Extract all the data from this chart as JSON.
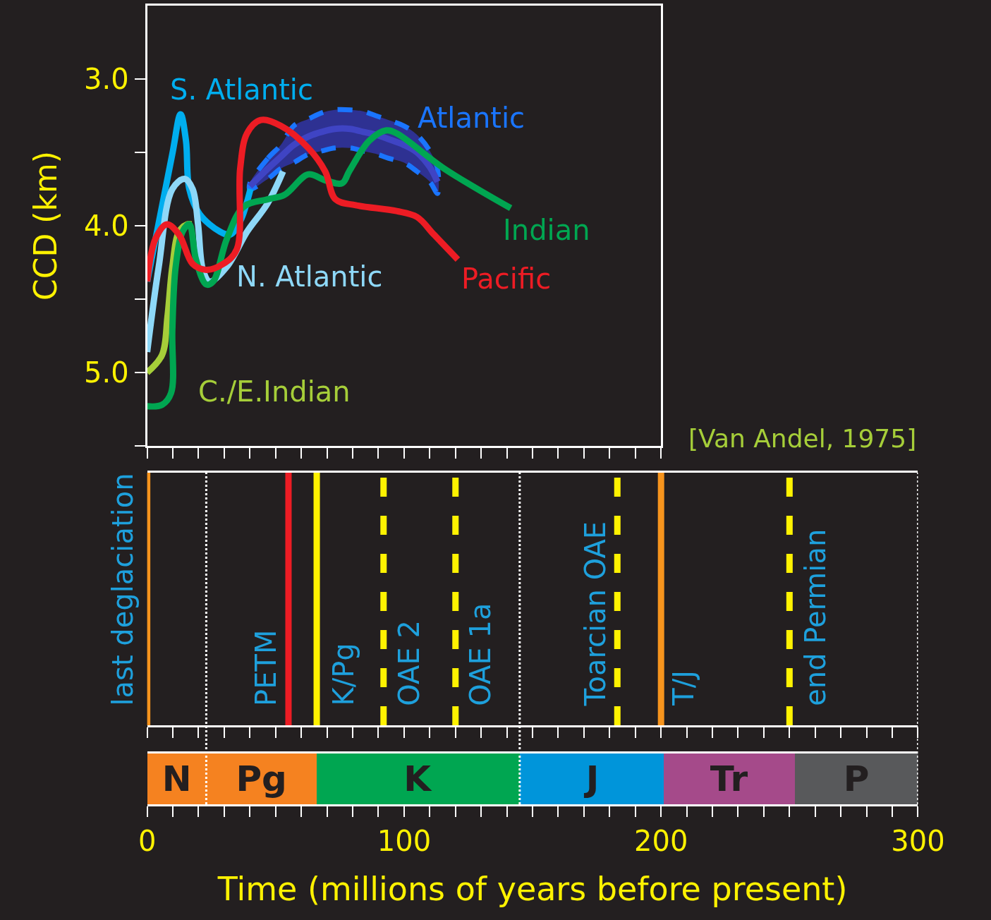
{
  "chart_data": [
    {
      "type": "line",
      "ylabel": "CCD (km)",
      "xlim": [
        0,
        200
      ],
      "ylim": [
        5.5,
        2.5
      ],
      "xticks": [
        0,
        10,
        20,
        30,
        40,
        50,
        60,
        70,
        80,
        90,
        100,
        110,
        120,
        130,
        140,
        150,
        160,
        170,
        180,
        190,
        200
      ],
      "yticks": [
        {
          "value": 3,
          "label": "3.0"
        },
        {
          "value": 3.5,
          "label": null
        },
        {
          "value": 4,
          "label": "4.0"
        },
        {
          "value": 4.5,
          "label": null
        },
        {
          "value": 5,
          "label": "5.0"
        },
        {
          "value": 5.5,
          "label": null
        }
      ],
      "tick_labels": "y",
      "annotations": [
        "[Van Andel, 1975]"
      ],
      "series": [
        {
          "name": "Atlantic",
          "color": "#3f44c4",
          "x": [
            40,
            47,
            52,
            57,
            63,
            68,
            73,
            79,
            84,
            89,
            94,
            100,
            105,
            110,
            113
          ],
          "values": [
            3.73,
            3.61,
            3.53,
            3.45,
            3.39,
            3.36,
            3.34,
            3.34,
            3.36,
            3.38,
            3.41,
            3.45,
            3.5,
            3.6,
            3.7
          ],
          "upper": [
            3.71,
            3.54,
            3.45,
            3.32,
            3.27,
            3.23,
            3.21,
            3.21,
            3.22,
            3.25,
            3.28,
            3.32,
            3.38,
            3.49,
            3.61
          ],
          "lower": [
            3.75,
            3.68,
            3.61,
            3.57,
            3.51,
            3.49,
            3.47,
            3.47,
            3.49,
            3.51,
            3.54,
            3.57,
            3.63,
            3.7,
            3.78
          ]
        },
        {
          "name": "S. Atlantic",
          "color": "#00aeef",
          "x": [
            0,
            9.8,
            13,
            15.1,
            16.4,
            20.4,
            28.3,
            32.3,
            36.2,
            40.2
          ],
          "values": [
            4.38,
            3.51,
            3.24,
            3.42,
            3.75,
            3.92,
            4.04,
            4.06,
            3.97,
            3.75
          ]
        },
        {
          "name": "N. Atlantic",
          "color": "#8ed8f8",
          "x": [
            0,
            4.5,
            9.8,
            14.6,
            17.7,
            19.8,
            21.7,
            24.3,
            31,
            38.9,
            46.8,
            52.9
          ],
          "values": [
            4.86,
            4.28,
            3.75,
            3.68,
            3.75,
            3.99,
            4.3,
            4.38,
            4.28,
            4.04,
            3.85,
            3.63
          ]
        },
        {
          "name": "C./E.Indian",
          "color": "#a6ce39",
          "x": [
            0,
            5.8,
            7.9,
            9.8,
            12.4,
            15.6,
            17.2
          ],
          "values": [
            5.0,
            4.88,
            4.62,
            4.28,
            4.04,
            3.99,
            3.99
          ]
        },
        {
          "name": "Indian",
          "color": "#00a651",
          "x": [
            0,
            5.8,
            9.3,
            9.8,
            11.1,
            13.8,
            16.4,
            19,
            23,
            25.7,
            31,
            37.6,
            46.8,
            53.4,
            62.7,
            69.3,
            75.9,
            78.6,
            86.5,
            93.1,
            97.1,
            115.6,
            141.5
          ],
          "values": [
            5.23,
            5.22,
            5.14,
            4.71,
            4.28,
            4.04,
            3.99,
            4.23,
            4.4,
            4.38,
            4.09,
            3.87,
            3.82,
            3.79,
            3.65,
            3.69,
            3.71,
            3.63,
            3.42,
            3.35,
            3.37,
            3.61,
            3.88
          ]
        },
        {
          "name": "Pacific",
          "color": "#ed1c24",
          "x": [
            0,
            3.2,
            7.7,
            12.4,
            17.7,
            23,
            29.6,
            34.9,
            36.2,
            38.9,
            44.2,
            52.1,
            62.7,
            69.3,
            73.3,
            81.2,
            97.1,
            105,
            111.6,
            120.9
          ],
          "values": [
            4.38,
            4.09,
            3.99,
            4.06,
            4.26,
            4.3,
            4.26,
            4.16,
            3.61,
            3.37,
            3.28,
            3.32,
            3.47,
            3.63,
            3.82,
            3.86,
            3.9,
            3.94,
            4.06,
            4.23
          ]
        }
      ]
    },
    {
      "type": "bar",
      "orientation": "horizontal",
      "stacked": true,
      "categories": [
        null
      ],
      "xlabel": "Time (millions of years before present)",
      "xlim": [
        0,
        300
      ],
      "xticks": [
        {
          "value": 0,
          "label": "0"
        },
        {
          "value": 10,
          "label": null
        },
        {
          "value": 20,
          "label": null
        },
        {
          "value": 30,
          "label": null
        },
        {
          "value": 40,
          "label": null
        },
        {
          "value": 50,
          "label": null
        },
        {
          "value": 60,
          "label": null
        },
        {
          "value": 70,
          "label": null
        },
        {
          "value": 80,
          "label": null
        },
        {
          "value": 90,
          "label": null
        },
        {
          "value": 100,
          "label": "100"
        },
        {
          "value": 110,
          "label": null
        },
        {
          "value": 120,
          "label": null
        },
        {
          "value": 130,
          "label": null
        },
        {
          "value": 140,
          "label": null
        },
        {
          "value": 150,
          "label": null
        },
        {
          "value": 160,
          "label": null
        },
        {
          "value": 170,
          "label": null
        },
        {
          "value": 180,
          "label": null
        },
        {
          "value": 190,
          "label": null
        },
        {
          "value": 200,
          "label": "200"
        },
        {
          "value": 210,
          "label": null
        },
        {
          "value": 220,
          "label": null
        },
        {
          "value": 230,
          "label": null
        },
        {
          "value": 240,
          "label": null
        },
        {
          "value": 250,
          "label": null
        },
        {
          "value": 260,
          "label": null
        },
        {
          "value": 270,
          "label": null
        },
        {
          "value": 280,
          "label": null
        },
        {
          "value": 290,
          "label": null
        },
        {
          "value": 300,
          "label": "300"
        }
      ],
      "series": [
        {
          "color": "#f58220",
          "values": [
            23
          ],
          "value_labels": [
            "N"
          ]
        },
        {
          "color": "#f58220",
          "values": [
            43
          ],
          "value_labels": [
            "Pg"
          ]
        },
        {
          "color": "#00a651",
          "values": [
            79
          ],
          "value_labels": [
            "K"
          ]
        },
        {
          "color": "#0095da",
          "values": [
            56
          ],
          "value_labels": [
            "J"
          ]
        },
        {
          "color": "#a54a8a",
          "values": [
            51
          ],
          "value_labels": [
            "Tr"
          ]
        },
        {
          "color": "#58595b",
          "values": [
            48
          ],
          "value_labels": [
            "P"
          ]
        }
      ],
      "ref_lines": [
        {
          "axis": "x",
          "value": 0,
          "label": "last deglaciation",
          "color": "#f7941d",
          "line_style": "solid"
        },
        {
          "axis": "x",
          "value": 55,
          "label": "PETM",
          "color": "#ed1c24",
          "line_style": "solid"
        },
        {
          "axis": "x",
          "value": 66,
          "label": "K/Pg",
          "color": "#fff200",
          "line_style": "solid"
        },
        {
          "axis": "x",
          "value": 92,
          "label": "OAE 2",
          "color": "#fff200",
          "line_style": "dashed"
        },
        {
          "axis": "x",
          "value": 120,
          "label": "OAE 1a",
          "color": "#fff200",
          "line_style": "dashed"
        },
        {
          "axis": "x",
          "value": 183,
          "label": "Toarcian OAE",
          "color": "#fff200",
          "line_style": "dashed"
        },
        {
          "axis": "x",
          "value": 200,
          "label": "T/J",
          "color": "#f7941d",
          "line_style": "solid"
        },
        {
          "axis": "x",
          "value": 250,
          "label": "end Permian",
          "color": "#fff200",
          "line_style": "dashed"
        },
        {
          "axis": "x",
          "value": 23,
          "color": "#ffffff",
          "line_style": "dotted"
        },
        {
          "axis": "x",
          "value": 145,
          "color": "#ffffff",
          "line_style": "dotted"
        },
        {
          "axis": "x",
          "value": 300,
          "color": "#ffffff",
          "line_style": "dotted"
        }
      ]
    }
  ]
}
